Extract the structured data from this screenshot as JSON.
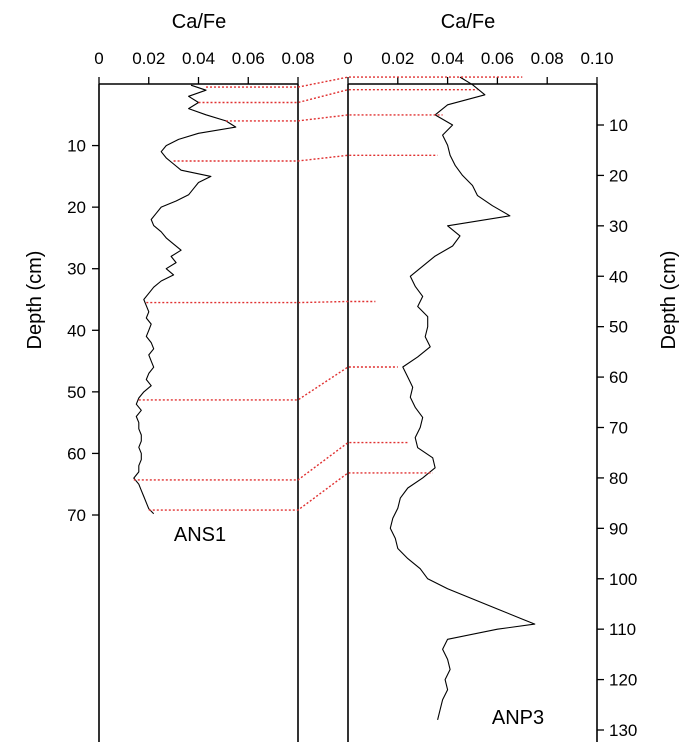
{
  "chart_data": [
    {
      "type": "line",
      "core": "ANS1",
      "title": "Ca/Fe",
      "xlabel": "Ca/Fe",
      "ylabel": "Depth (cm)",
      "xlim": [
        0,
        0.08
      ],
      "ylim": [
        0,
        70
      ],
      "y_reversed": true,
      "x_ticks": [
        "0",
        "0.02",
        "0.04",
        "0.06",
        "0.08"
      ],
      "y_ticks": [
        "10",
        "20",
        "30",
        "40",
        "50",
        "60",
        "70"
      ],
      "series": [
        {
          "depth": [
            0.2,
            1,
            2,
            3,
            4,
            5,
            6,
            7,
            8,
            9,
            10,
            11,
            12,
            13,
            14,
            15,
            16,
            17,
            18,
            19,
            20,
            21,
            22,
            23,
            24,
            25,
            26,
            27,
            28,
            29,
            30,
            31,
            32,
            33,
            34,
            35,
            36,
            37,
            38,
            39,
            40,
            41,
            42,
            43,
            44,
            45,
            46,
            47,
            48,
            49,
            50,
            51,
            52,
            53,
            54,
            55,
            56,
            57,
            58,
            59,
            60,
            61,
            62,
            63,
            64,
            65,
            66,
            67,
            68,
            69,
            69.8
          ],
          "values": [
            0.037,
            0.043,
            0.036,
            0.04,
            0.036,
            0.043,
            0.051,
            0.055,
            0.04,
            0.032,
            0.027,
            0.025,
            0.027,
            0.03,
            0.033,
            0.045,
            0.04,
            0.038,
            0.036,
            0.031,
            0.025,
            0.023,
            0.021,
            0.022,
            0.025,
            0.027,
            0.03,
            0.033,
            0.029,
            0.031,
            0.027,
            0.03,
            0.025,
            0.022,
            0.02,
            0.018,
            0.019,
            0.02,
            0.019,
            0.021,
            0.02,
            0.019,
            0.021,
            0.022,
            0.02,
            0.021,
            0.022,
            0.02,
            0.019,
            0.021,
            0.018,
            0.016,
            0.015,
            0.017,
            0.015,
            0.016,
            0.016,
            0.017,
            0.017,
            0.016,
            0.017,
            0.017,
            0.016,
            0.016,
            0.014,
            0.016,
            0.017,
            0.018,
            0.019,
            0.02,
            0.022
          ]
        }
      ]
    },
    {
      "type": "line",
      "core": "ANP3",
      "title": "Ca/Fe",
      "xlabel": "Ca/Fe",
      "ylabel": "Depth (cm)",
      "xlim": [
        0,
        0.1
      ],
      "ylim": [
        0,
        130
      ],
      "y_reversed": true,
      "x_ticks": [
        "0",
        "0.02",
        "0.04",
        "0.06",
        "0.08",
        "0.10"
      ],
      "y_ticks": [
        "10",
        "20",
        "30",
        "40",
        "50",
        "60",
        "70",
        "80",
        "90",
        "100",
        "110",
        "120",
        "130"
      ],
      "series": [
        {
          "depth": [
            0.5,
            2,
            4,
            6,
            8,
            10,
            12,
            14,
            16,
            18,
            20,
            22,
            24,
            26,
            28,
            30,
            32,
            34,
            36,
            38,
            40,
            42,
            44,
            46,
            48,
            50,
            52,
            54,
            56,
            58,
            60,
            62,
            64,
            66,
            68,
            70,
            72,
            74,
            76,
            78,
            80,
            82,
            84,
            86,
            88,
            90,
            92,
            94,
            96,
            98,
            100,
            102,
            104,
            106,
            108,
            109,
            110,
            112,
            114,
            116,
            118,
            120,
            122,
            124,
            126,
            128
          ],
          "values": [
            0.045,
            0.05,
            0.055,
            0.04,
            0.035,
            0.042,
            0.038,
            0.04,
            0.041,
            0.043,
            0.046,
            0.05,
            0.052,
            0.058,
            0.065,
            0.04,
            0.045,
            0.042,
            0.035,
            0.03,
            0.025,
            0.027,
            0.03,
            0.028,
            0.032,
            0.032,
            0.031,
            0.033,
            0.028,
            0.022,
            0.024,
            0.026,
            0.025,
            0.027,
            0.03,
            0.029,
            0.027,
            0.028,
            0.034,
            0.035,
            0.03,
            0.024,
            0.021,
            0.02,
            0.018,
            0.017,
            0.019,
            0.02,
            0.024,
            0.029,
            0.032,
            0.04,
            0.05,
            0.06,
            0.07,
            0.075,
            0.06,
            0.04,
            0.038,
            0.04,
            0.041,
            0.039,
            0.04,
            0.038,
            0.037,
            0.036
          ]
        }
      ]
    }
  ],
  "correlations": [
    {
      "ans1_depth": 0.5,
      "anp3_depth": 0.5,
      "anp3_value": 0.07
    },
    {
      "ans1_depth": 3,
      "anp3_depth": 3,
      "anp3_value": 0.052
    },
    {
      "ans1_depth": 6,
      "anp3_depth": 8,
      "anp3_value": 0.038
    },
    {
      "ans1_depth": 12.5,
      "anp3_depth": 16,
      "anp3_value": 0.036
    },
    {
      "ans1_depth": 35.5,
      "anp3_depth": 45,
      "anp3_value": 0.011
    },
    {
      "ans1_depth": 51.3,
      "anp3_depth": 58,
      "anp3_value": 0.02
    },
    {
      "ans1_depth": 64.3,
      "anp3_depth": 73,
      "anp3_value": 0.024
    },
    {
      "ans1_depth": 69.2,
      "anp3_depth": 79,
      "anp3_value": 0.034
    }
  ]
}
